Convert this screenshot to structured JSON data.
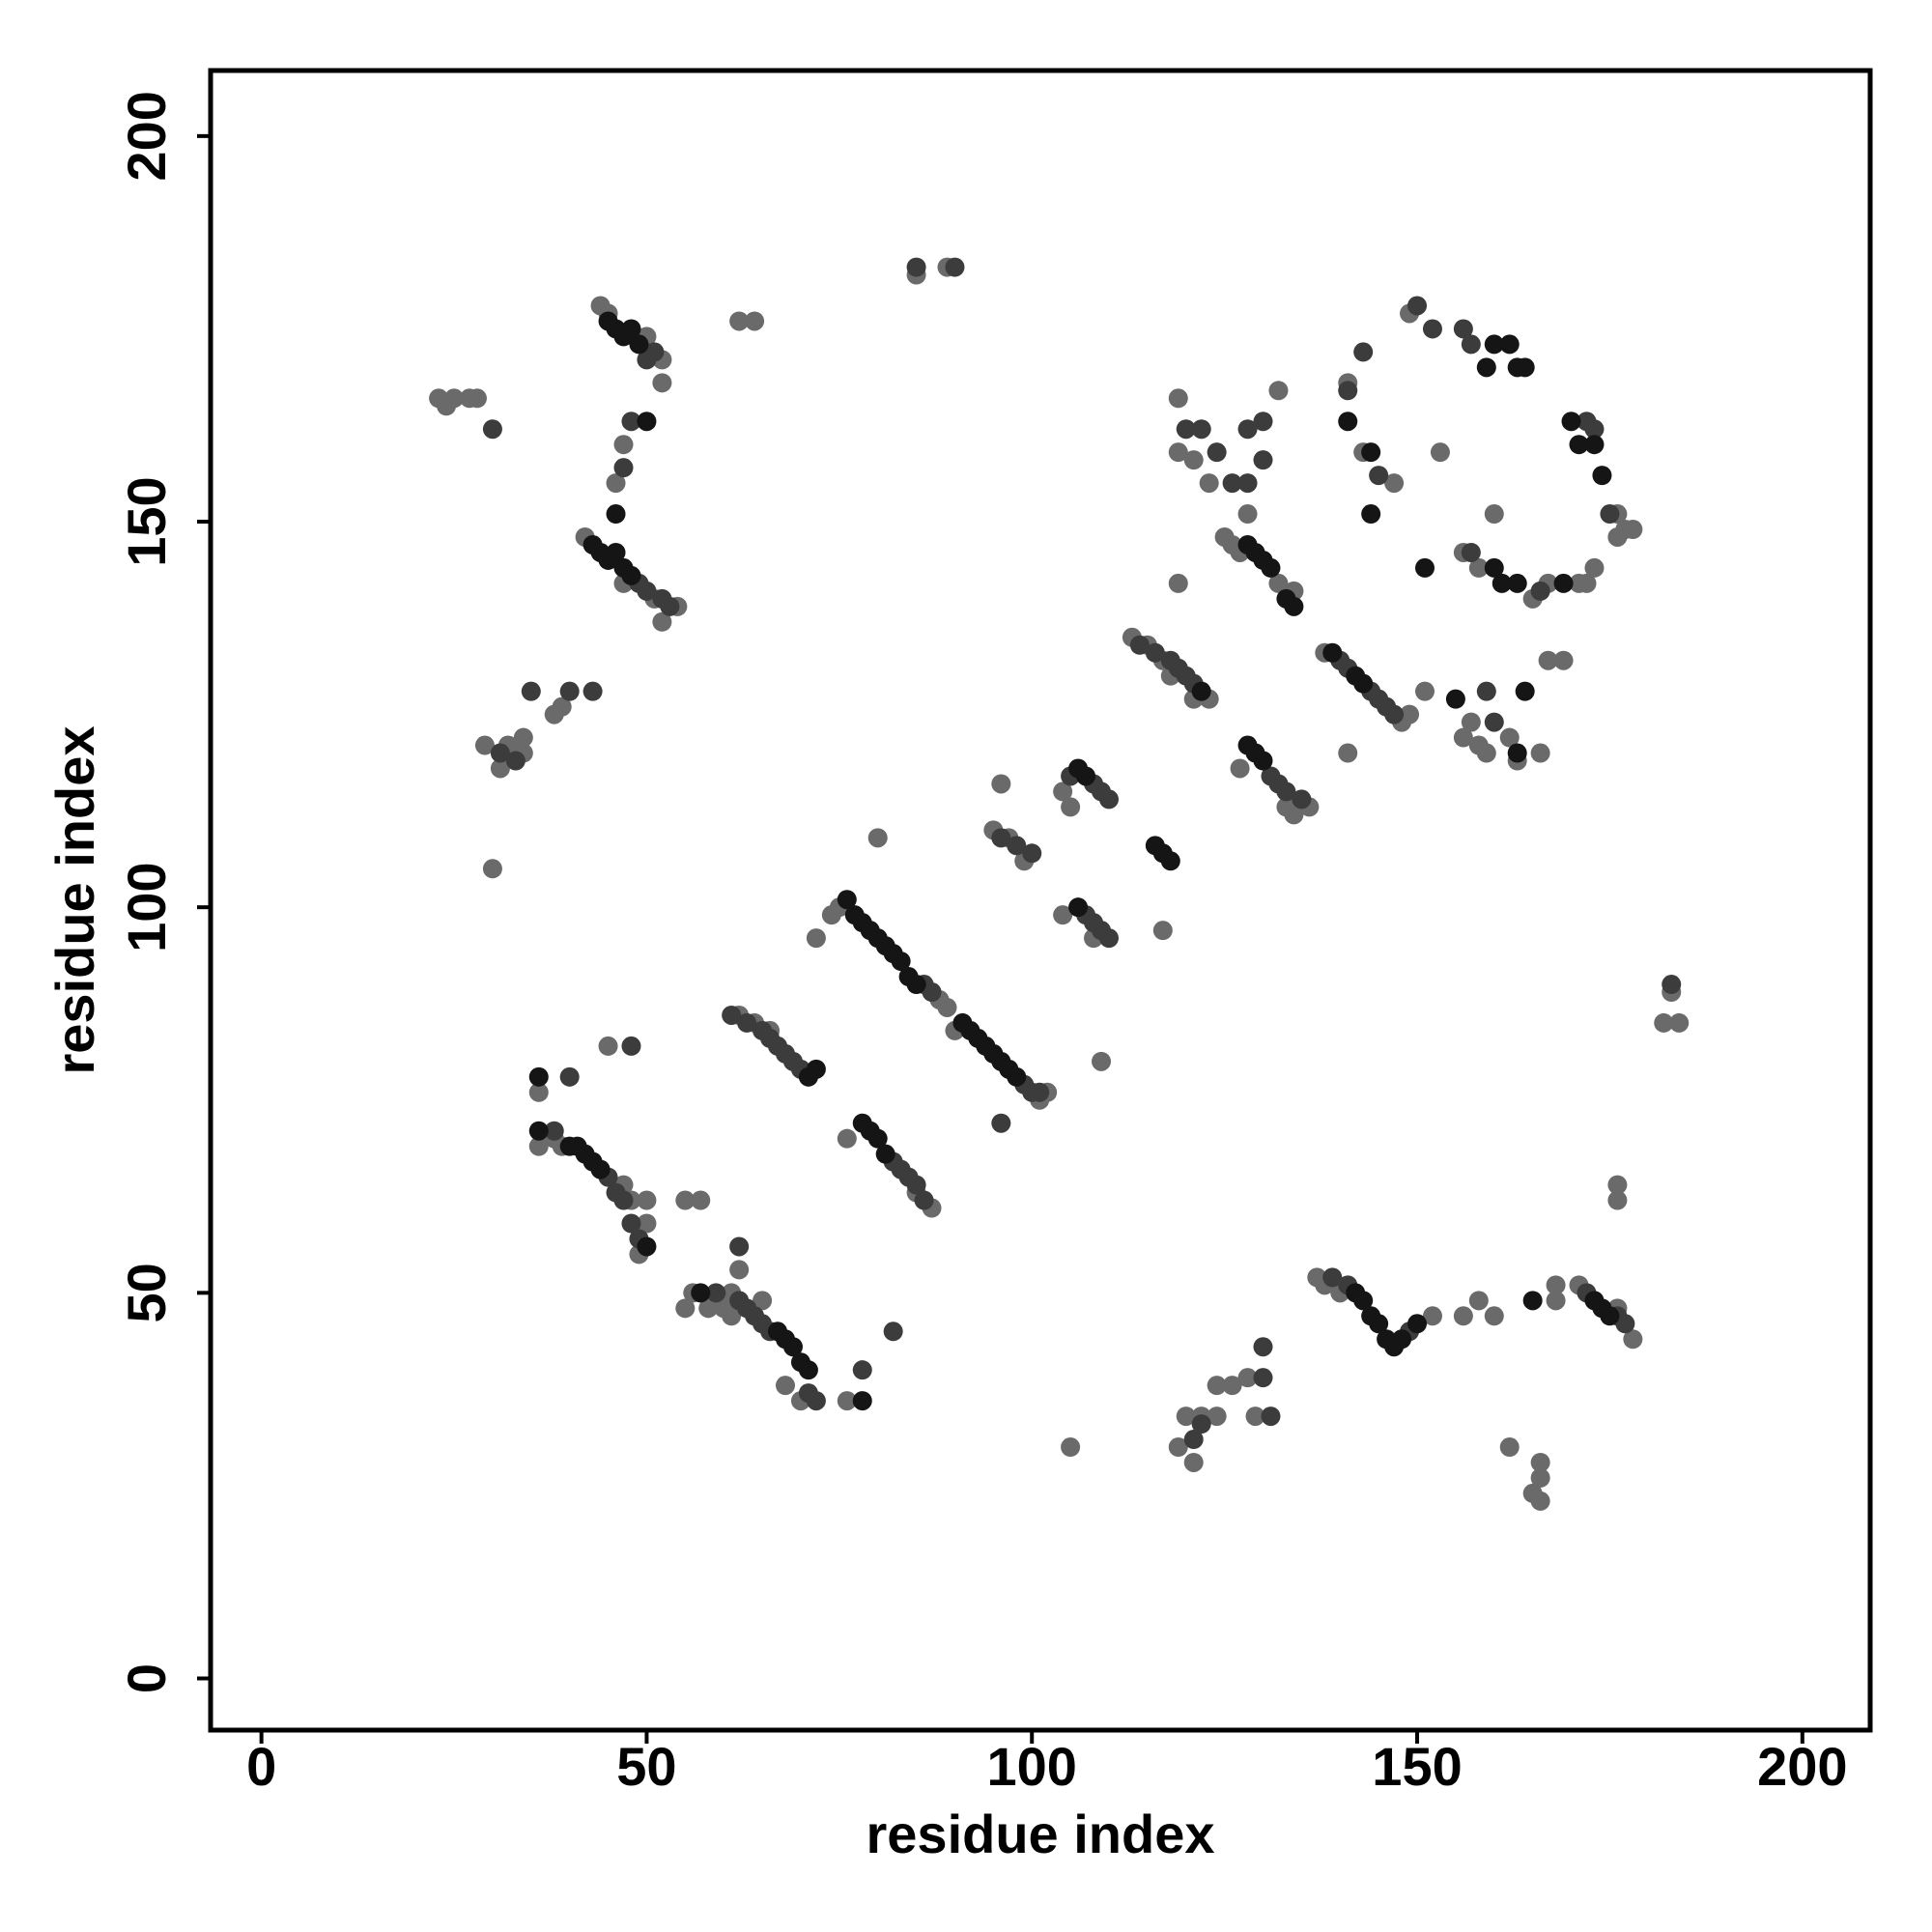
{
  "chart_data": {
    "type": "scatter",
    "x_label": "residue index",
    "y_label": "residue index",
    "xlim": [
      -6.6,
      208.8
    ],
    "ylim": [
      -6.7,
      208.5
    ],
    "xticks": [
      0,
      50,
      100,
      150,
      200
    ],
    "yticks": [
      0,
      50,
      100,
      150,
      200
    ],
    "series": [
      {
        "color": "#6a6a6a",
        "x": [
          62,
          64,
          66,
          75,
          74,
          88,
          89,
          90,
          102,
          101,
          76,
          87,
          85,
          36,
          38,
          39,
          47,
          48,
          49,
          50,
          50,
          60,
          61,
          61,
          62,
          65,
          68,
          104,
          105,
          104,
          108,
          95,
          97,
          99,
          113,
          115,
          117,
          118,
          121,
          123,
          125,
          126,
          127,
          132,
          134,
          127,
          133,
          134,
          136,
          138,
          148,
          149,
          42,
          47,
          51,
          54,
          52,
          44,
          45,
          50,
          52,
          52,
          47,
          46,
          137,
          138,
          140,
          171,
          178,
          176,
          23,
          24,
          25,
          27,
          28,
          29,
          31,
          32,
          34,
          34,
          38,
          39,
          30,
          62,
          64,
          85,
          89,
          72,
          80,
          96,
          109,
          117,
          105,
          119,
          120,
          121,
          122,
          124,
          126,
          128,
          129,
          124,
          70,
          76,
          55,
          56,
          58,
          55,
          57,
          36,
          45,
          119,
          119,
          121,
          123,
          119,
          132,
          128,
          141,
          143,
          147,
          149,
          153,
          151,
          156,
          158,
          157,
          159,
          162,
          163,
          166,
          141,
          158,
          160,
          156,
          165,
          167,
          167,
          169,
          171,
          172,
          173,
          176,
          177,
          178,
          176,
          183,
          182,
          184,
          176,
          176,
          166,
          166,
          165,
          166,
          162,
          156,
          158,
          160,
          168,
          168,
          152
        ],
        "y": [
          86,
          85,
          84,
          100,
          99,
          88,
          87,
          84,
          76,
          75,
          70,
          61,
          63,
          69,
          70,
          69,
          64,
          62,
          55,
          59,
          62,
          48,
          47,
          50,
          53,
          49,
          38,
          115,
          113,
          99,
          96,
          110,
          109,
          106,
          135,
          134,
          132,
          130,
          127,
          127,
          148,
          147,
          146,
          142,
          141,
          118,
          113,
          112,
          113,
          133,
          124,
          125,
          148,
          142,
          140,
          139,
          137,
          178,
          177,
          174,
          171,
          168,
          160,
          155,
          52,
          51,
          50,
          51,
          44,
          48,
          166,
          165,
          166,
          166,
          166,
          121,
          118,
          121,
          122,
          120,
          125,
          126,
          105,
          176,
          176,
          182,
          183,
          96,
          109,
          116,
          80,
          97,
          30,
          30,
          34,
          28,
          34,
          38,
          38,
          39,
          34,
          34,
          36,
          36,
          48,
          50,
          48,
          62,
          62,
          76,
          82,
          166,
          142,
          158,
          155,
          159,
          167,
          151,
          168,
          159,
          155,
          177,
          159,
          128,
          122,
          121,
          124,
          120,
          122,
          119,
          120,
          120,
          144,
          151,
          146,
          140,
          142,
          132,
          132,
          142,
          142,
          144,
          148,
          149,
          149,
          151,
          89,
          85,
          85,
          64,
          62,
          28,
          26,
          24,
          23,
          30,
          47,
          49,
          47,
          51,
          49,
          47
        ]
      },
      {
        "color": "#3c3c3c",
        "x": [
          61,
          63,
          65,
          66,
          67,
          68,
          69,
          70,
          86,
          87,
          99,
          100,
          101,
          96,
          82,
          83,
          84,
          85,
          86,
          38,
          45,
          46,
          47,
          48,
          49,
          62,
          63,
          64,
          65,
          66,
          71,
          72,
          105,
          108,
          109,
          110,
          107,
          108,
          109,
          110,
          96,
          98,
          100,
          114,
          116,
          118,
          119,
          120,
          121,
          131,
          132,
          133,
          135,
          140,
          141,
          144,
          145,
          146,
          147,
          49,
          50,
          52,
          53,
          51,
          50,
          48,
          47,
          139,
          141,
          149,
          172,
          176,
          177,
          120,
          122,
          124,
          126,
          128,
          130,
          130,
          128,
          141,
          143,
          145,
          150,
          152,
          156,
          157,
          172,
          173,
          175,
          166,
          157,
          159,
          160,
          130,
          130,
          131,
          121,
          122,
          82,
          78,
          59,
          62,
          48,
          40,
          30,
          31,
          33,
          35,
          40,
          43,
          90,
          85,
          183
        ],
        "y": [
          86,
          85,
          84,
          83,
          82,
          81,
          80,
          79,
          90,
          89,
          77,
          76,
          76,
          72,
          67,
          66,
          65,
          64,
          62,
          71,
          65,
          63,
          62,
          59,
          57,
          49,
          48,
          47,
          46,
          45,
          37,
          36,
          117,
          116,
          115,
          114,
          99,
          98,
          97,
          96,
          109,
          108,
          107,
          134,
          133,
          132,
          131,
          130,
          129,
          117,
          116,
          115,
          114,
          132,
          131,
          128,
          127,
          126,
          125,
          142,
          141,
          140,
          139,
          172,
          171,
          163,
          157,
          52,
          51,
          45,
          50,
          47,
          46,
          162,
          162,
          159,
          155,
          162,
          163,
          158,
          155,
          167,
          172,
          156,
          178,
          175,
          175,
          173,
          163,
          162,
          151,
          141,
          146,
          128,
          124,
          43,
          39,
          34,
          31,
          33,
          45,
          40,
          50,
          56,
          82,
          78,
          162,
          120,
          119,
          128,
          128,
          128,
          183,
          183,
          90
        ]
      },
      {
        "color": "#151515",
        "x": [
          71,
          72,
          76,
          77,
          78,
          79,
          80,
          81,
          82,
          83,
          84,
          85,
          91,
          92,
          93,
          94,
          95,
          96,
          97,
          98,
          78,
          79,
          80,
          81,
          36,
          36,
          40,
          41,
          42,
          43,
          44,
          50,
          67,
          68,
          69,
          70,
          71,
          78,
          106,
          107,
          106,
          116,
          117,
          118,
          122,
          128,
          129,
          130,
          128,
          129,
          130,
          131,
          133,
          134,
          139,
          142,
          143,
          43,
          44,
          45,
          46,
          47,
          48,
          46,
          45,
          46,
          47,
          48,
          49,
          50,
          142,
          143,
          144,
          145,
          146,
          147,
          148,
          150,
          173,
          174,
          175,
          141,
          144,
          144,
          151,
          160,
          159,
          160,
          162,
          163,
          164,
          161,
          163,
          170,
          171,
          173,
          174,
          169,
          164,
          163,
          155,
          165,
          57
        ],
        "y": [
          78,
          79,
          101,
          99,
          98,
          97,
          96,
          95,
          94,
          93,
          91,
          90,
          85,
          84,
          83,
          82,
          81,
          80,
          79,
          78,
          72,
          71,
          70,
          68,
          78,
          71,
          69,
          69,
          68,
          67,
          66,
          56,
          45,
          44,
          43,
          41,
          40,
          36,
          118,
          117,
          100,
          108,
          107,
          106,
          128,
          121,
          120,
          119,
          147,
          146,
          145,
          144,
          140,
          139,
          133,
          130,
          129,
          147,
          146,
          145,
          146,
          144,
          143,
          151,
          176,
          175,
          174,
          175,
          173,
          163,
          50,
          49,
          47,
          46,
          44,
          43,
          44,
          46,
          49,
          48,
          47,
          163,
          159,
          151,
          144,
          144,
          170,
          173,
          173,
          170,
          170,
          142,
          142,
          163,
          160,
          160,
          156,
          142,
          128,
          120,
          127,
          49,
          50
        ]
      }
    ]
  }
}
